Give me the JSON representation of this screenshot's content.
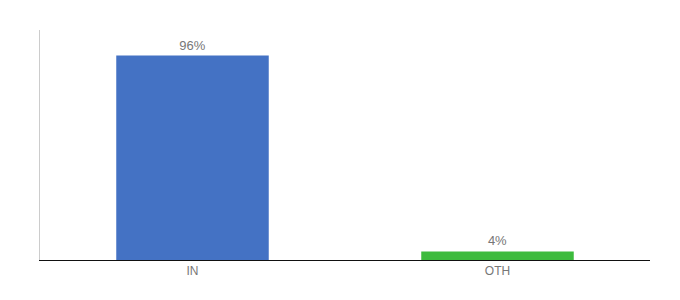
{
  "chart_data": {
    "type": "bar",
    "categories": [
      "IN",
      "OTH"
    ],
    "values": [
      96,
      4
    ],
    "value_labels": [
      "96%",
      "4%"
    ],
    "colors": [
      "#4472c4",
      "#3dbb3d"
    ],
    "ylim": [
      0,
      108
    ],
    "data_labels": true,
    "tick_labels": "x",
    "grid": false
  }
}
